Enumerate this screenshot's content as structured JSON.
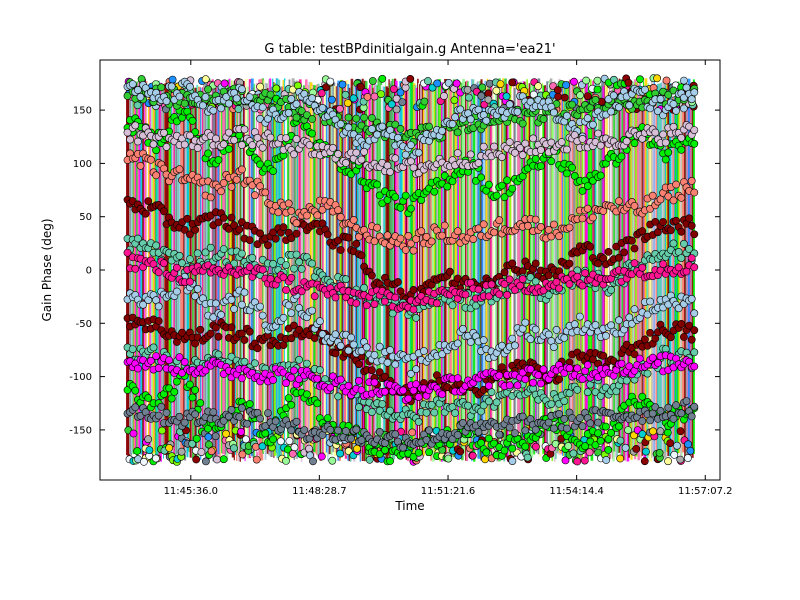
{
  "figure": {
    "title": "G table: testBPdinitialgain.g      Antenna='ea21'"
  },
  "chart_data": {
    "type": "scatter",
    "title": "G table: testBPdinitialgain.g      Antenna='ea21'",
    "xlabel": "Time",
    "ylabel": "Gain Phase (deg)",
    "x_scale": "time",
    "xlim": [
      "11:43:34",
      "11:57:27"
    ],
    "ylim": [
      -197,
      197
    ],
    "x_ticks": [
      "11:45:36.0",
      "11:48:28.7",
      "11:51:21.6",
      "11:54:14.4",
      "11:57:07.2"
    ],
    "y_ticks": [
      -150,
      -100,
      -50,
      0,
      50,
      100,
      150
    ],
    "grid": false,
    "legend": "none",
    "x_range_of_data": [
      "11:44:11",
      "11:56:53"
    ],
    "series_colors": [
      "#800000",
      "#66cdaa",
      "#00ee00",
      "#32cd32",
      "#a6cde8",
      "#fa8072",
      "#ff1493",
      "#7cfc00",
      "#ff00ff",
      "#d8bfd8",
      "#1e90ff",
      "#00ced1",
      "#ffd700",
      "#8b0000",
      "#a9a9a9",
      "#708090",
      "#f0f8ff",
      "#ffff99",
      "#98fb98",
      "#ff69b4"
    ],
    "series": [
      {
        "color": "#800000",
        "values": [
          [
            0,
            62
          ],
          [
            0.04,
            58
          ],
          [
            0.08,
            45
          ],
          [
            0.12,
            40
          ],
          [
            0.16,
            50
          ],
          [
            0.2,
            38
          ],
          [
            0.24,
            30
          ],
          [
            0.28,
            35
          ],
          [
            0.32,
            45
          ],
          [
            0.36,
            30
          ],
          [
            0.4,
            20
          ],
          [
            0.44,
            -10
          ],
          [
            0.5,
            -25
          ],
          [
            0.55,
            -5
          ],
          [
            0.6,
            -15
          ],
          [
            0.65,
            -5
          ],
          [
            0.7,
            5
          ],
          [
            0.75,
            -5
          ],
          [
            0.8,
            20
          ],
          [
            0.85,
            10
          ],
          [
            0.9,
            30
          ],
          [
            0.95,
            45
          ],
          [
            1,
            40
          ]
        ]
      },
      {
        "color": "#800000",
        "values": [
          [
            0,
            -45
          ],
          [
            0.04,
            -50
          ],
          [
            0.08,
            -60
          ],
          [
            0.12,
            -65
          ],
          [
            0.16,
            -55
          ],
          [
            0.2,
            -60
          ],
          [
            0.24,
            -70
          ],
          [
            0.28,
            -62
          ],
          [
            0.32,
            -55
          ],
          [
            0.36,
            -70
          ],
          [
            0.4,
            -80
          ],
          [
            0.44,
            -100
          ],
          [
            0.5,
            -120
          ],
          [
            0.55,
            -105
          ],
          [
            0.6,
            -115
          ],
          [
            0.65,
            -100
          ],
          [
            0.7,
            -90
          ],
          [
            0.75,
            -100
          ],
          [
            0.8,
            -80
          ],
          [
            0.85,
            -90
          ],
          [
            0.9,
            -70
          ],
          [
            0.95,
            -55
          ],
          [
            1,
            -60
          ]
        ]
      },
      {
        "color": "#66cdaa",
        "values": [
          [
            0,
            25
          ],
          [
            0.05,
            20
          ],
          [
            0.1,
            5
          ],
          [
            0.15,
            15
          ],
          [
            0.2,
            10
          ],
          [
            0.25,
            0
          ],
          [
            0.3,
            10
          ],
          [
            0.35,
            -5
          ],
          [
            0.4,
            -20
          ],
          [
            0.45,
            -30
          ],
          [
            0.5,
            -40
          ],
          [
            0.55,
            -25
          ],
          [
            0.6,
            -30
          ],
          [
            0.65,
            -20
          ],
          [
            0.7,
            -10
          ],
          [
            0.75,
            -25
          ],
          [
            0.8,
            -5
          ],
          [
            0.85,
            -15
          ],
          [
            0.9,
            5
          ],
          [
            0.95,
            20
          ],
          [
            1,
            15
          ]
        ]
      },
      {
        "color": "#66cdaa",
        "values": [
          [
            0,
            -75
          ],
          [
            0.05,
            -80
          ],
          [
            0.1,
            -95
          ],
          [
            0.15,
            -85
          ],
          [
            0.2,
            -90
          ],
          [
            0.25,
            -100
          ],
          [
            0.3,
            -90
          ],
          [
            0.35,
            -105
          ],
          [
            0.4,
            -120
          ],
          [
            0.45,
            -130
          ],
          [
            0.5,
            -140
          ],
          [
            0.55,
            -125
          ],
          [
            0.6,
            -130
          ],
          [
            0.65,
            -120
          ],
          [
            0.7,
            -110
          ],
          [
            0.75,
            -125
          ],
          [
            0.8,
            -105
          ],
          [
            0.85,
            -115
          ],
          [
            0.9,
            -95
          ],
          [
            0.95,
            -80
          ],
          [
            1,
            -85
          ]
        ]
      },
      {
        "color": "#00ee00",
        "values": [
          [
            0,
            140
          ],
          [
            0.05,
            120
          ],
          [
            0.1,
            150
          ],
          [
            0.15,
            100
          ],
          [
            0.2,
            130
          ],
          [
            0.25,
            90
          ],
          [
            0.3,
            140
          ],
          [
            0.35,
            110
          ],
          [
            0.4,
            95
          ],
          [
            0.45,
            70
          ],
          [
            0.5,
            60
          ],
          [
            0.55,
            80
          ],
          [
            0.6,
            100
          ],
          [
            0.65,
            70
          ],
          [
            0.7,
            90
          ],
          [
            0.75,
            110
          ],
          [
            0.8,
            80
          ],
          [
            0.85,
            100
          ],
          [
            0.9,
            130
          ],
          [
            0.95,
            110
          ],
          [
            1,
            120
          ]
        ]
      },
      {
        "color": "#00ee00",
        "values": [
          [
            0,
            -110
          ],
          [
            0.05,
            -130
          ],
          [
            0.1,
            -100
          ],
          [
            0.15,
            -150
          ],
          [
            0.2,
            -120
          ],
          [
            0.25,
            -160
          ],
          [
            0.3,
            -110
          ],
          [
            0.35,
            -140
          ],
          [
            0.4,
            -155
          ],
          [
            0.45,
            -175
          ],
          [
            0.5,
            -170
          ],
          [
            0.55,
            -160
          ],
          [
            0.6,
            -150
          ],
          [
            0.65,
            -170
          ],
          [
            0.7,
            -160
          ],
          [
            0.75,
            -140
          ],
          [
            0.8,
            -165
          ],
          [
            0.85,
            -150
          ],
          [
            0.9,
            -120
          ],
          [
            0.95,
            -140
          ],
          [
            1,
            -130
          ]
        ]
      },
      {
        "color": "#32cd32",
        "values": [
          [
            0,
            170
          ],
          [
            0.1,
            160
          ],
          [
            0.2,
            165
          ],
          [
            0.3,
            150
          ],
          [
            0.4,
            140
          ],
          [
            0.5,
            125
          ],
          [
            0.6,
            135
          ],
          [
            0.7,
            145
          ],
          [
            0.8,
            150
          ],
          [
            0.9,
            160
          ],
          [
            1,
            165
          ]
        ]
      },
      {
        "color": "#a6cde8",
        "values": [
          [
            0,
            175
          ],
          [
            0.05,
            160
          ],
          [
            0.1,
            170
          ],
          [
            0.15,
            150
          ],
          [
            0.2,
            165
          ],
          [
            0.25,
            140
          ],
          [
            0.3,
            160
          ],
          [
            0.35,
            150
          ],
          [
            0.4,
            120
          ],
          [
            0.45,
            130
          ],
          [
            0.5,
            110
          ],
          [
            0.55,
            130
          ],
          [
            0.6,
            150
          ],
          [
            0.65,
            140
          ],
          [
            0.7,
            160
          ],
          [
            0.75,
            150
          ],
          [
            0.8,
            130
          ],
          [
            0.85,
            155
          ],
          [
            0.9,
            165
          ],
          [
            0.95,
            150
          ],
          [
            1,
            170
          ]
        ]
      },
      {
        "color": "#a6cde8",
        "values": [
          [
            0,
            -20
          ],
          [
            0.05,
            -30
          ],
          [
            0.1,
            -10
          ],
          [
            0.15,
            -40
          ],
          [
            0.2,
            -25
          ],
          [
            0.25,
            -50
          ],
          [
            0.3,
            -30
          ],
          [
            0.35,
            -60
          ],
          [
            0.4,
            -70
          ],
          [
            0.45,
            -80
          ],
          [
            0.5,
            -90
          ],
          [
            0.55,
            -75
          ],
          [
            0.6,
            -60
          ],
          [
            0.65,
            -80
          ],
          [
            0.7,
            -55
          ],
          [
            0.75,
            -65
          ],
          [
            0.8,
            -50
          ],
          [
            0.85,
            -60
          ],
          [
            0.9,
            -40
          ],
          [
            0.95,
            -30
          ],
          [
            1,
            -35
          ]
        ]
      },
      {
        "color": "#fa8072",
        "values": [
          [
            0,
            110
          ],
          [
            0.05,
            95
          ],
          [
            0.1,
            85
          ],
          [
            0.15,
            75
          ],
          [
            0.2,
            90
          ],
          [
            0.25,
            65
          ],
          [
            0.3,
            50
          ],
          [
            0.35,
            60
          ],
          [
            0.4,
            40
          ],
          [
            0.45,
            30
          ],
          [
            0.5,
            25
          ],
          [
            0.55,
            35
          ],
          [
            0.6,
            30
          ],
          [
            0.65,
            40
          ],
          [
            0.7,
            45
          ],
          [
            0.75,
            35
          ],
          [
            0.8,
            50
          ],
          [
            0.85,
            60
          ],
          [
            0.9,
            55
          ],
          [
            0.95,
            70
          ],
          [
            1,
            80
          ]
        ]
      },
      {
        "color": "#ff1493",
        "values": [
          [
            0,
            10
          ],
          [
            0.1,
            -5
          ],
          [
            0.2,
            0
          ],
          [
            0.3,
            -15
          ],
          [
            0.4,
            -25
          ],
          [
            0.5,
            -30
          ],
          [
            0.6,
            -20
          ],
          [
            0.7,
            -15
          ],
          [
            0.8,
            -10
          ],
          [
            0.9,
            0
          ],
          [
            1,
            5
          ]
        ]
      },
      {
        "color": "#ff00ff",
        "values": [
          [
            0,
            -85
          ],
          [
            0.1,
            -90
          ],
          [
            0.2,
            -95
          ],
          [
            0.3,
            -100
          ],
          [
            0.4,
            -110
          ],
          [
            0.5,
            -115
          ],
          [
            0.6,
            -105
          ],
          [
            0.7,
            -100
          ],
          [
            0.8,
            -95
          ],
          [
            0.9,
            -90
          ],
          [
            1,
            -85
          ]
        ]
      },
      {
        "color": "#708090",
        "values": [
          [
            0,
            -130
          ],
          [
            0.1,
            -140
          ],
          [
            0.2,
            -135
          ],
          [
            0.3,
            -150
          ],
          [
            0.4,
            -155
          ],
          [
            0.5,
            -160
          ],
          [
            0.6,
            -150
          ],
          [
            0.7,
            -145
          ],
          [
            0.8,
            -140
          ],
          [
            0.9,
            -135
          ],
          [
            1,
            -130
          ]
        ]
      },
      {
        "color": "#d8bfd8",
        "values": [
          [
            0,
            130
          ],
          [
            0.1,
            120
          ],
          [
            0.2,
            125
          ],
          [
            0.3,
            115
          ],
          [
            0.4,
            105
          ],
          [
            0.5,
            95
          ],
          [
            0.6,
            105
          ],
          [
            0.7,
            115
          ],
          [
            0.8,
            120
          ],
          [
            0.9,
            125
          ],
          [
            1,
            130
          ]
        ]
      }
    ]
  }
}
